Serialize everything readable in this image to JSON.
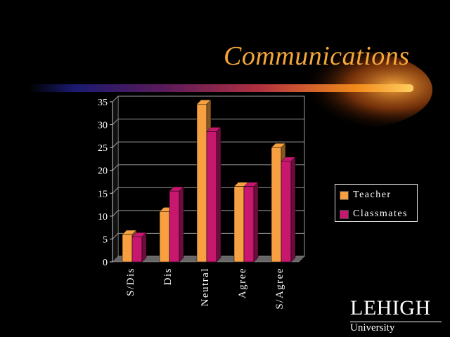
{
  "slide": {
    "title": "Communications",
    "logo_main": "LEHIGH",
    "logo_sub": "University"
  },
  "colors": {
    "background": "#000000",
    "title": "#f5a638",
    "teacher": "#f7a041",
    "classmates": "#c8176e"
  },
  "chart_data": {
    "type": "bar",
    "categories": [
      "S/Dis",
      "Dis",
      "Neutral",
      "Agree",
      "S/Agree"
    ],
    "series": [
      {
        "name": "Teacher",
        "values": [
          6,
          11,
          34.5,
          16.5,
          25
        ]
      },
      {
        "name": "Classmates",
        "values": [
          5.5,
          15.5,
          28.5,
          16.5,
          22
        ]
      }
    ],
    "ylim": [
      0,
      35
    ],
    "yticks": [
      "0",
      "5",
      "10",
      "15",
      "20",
      "25",
      "30",
      "35"
    ],
    "grid": true,
    "legend": "right",
    "style": "3d"
  }
}
